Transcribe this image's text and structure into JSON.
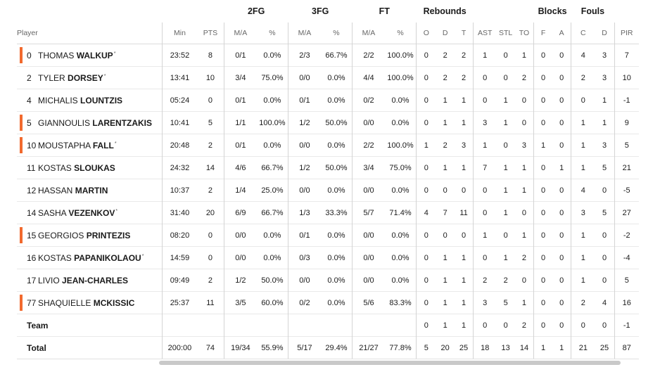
{
  "headers": {
    "groups": {
      "fg2": "2FG",
      "fg3": "3FG",
      "ft": "FT",
      "rebounds": "Rebounds",
      "blocks": "Blocks",
      "fouls": "Fouls"
    },
    "cols": {
      "player": "Player",
      "min": "Min",
      "pts": "PTS",
      "fg2_ma": "M/A",
      "fg2_pct": "%",
      "fg3_ma": "M/A",
      "fg3_pct": "%",
      "ft_ma": "M/A",
      "ft_pct": "%",
      "reb_o": "O",
      "reb_d": "D",
      "reb_t": "T",
      "ast": "AST",
      "stl": "STL",
      "to": "TO",
      "blk_f": "F",
      "blk_a": "A",
      "foul_c": "C",
      "foul_d": "D",
      "pir": "PIR"
    }
  },
  "players": [
    {
      "num": "0",
      "first": "THOMAS",
      "last": "WALKUP",
      "star": "*",
      "starter": true,
      "min": "23:52",
      "pts": "8",
      "fg2_ma": "0/1",
      "fg2_pct": "0.0%",
      "fg3_ma": "2/3",
      "fg3_pct": "66.7%",
      "ft_ma": "2/2",
      "ft_pct": "100.0%",
      "reb_o": "0",
      "reb_d": "2",
      "reb_t": "2",
      "ast": "1",
      "stl": "0",
      "to": "1",
      "blk_f": "0",
      "blk_a": "0",
      "foul_c": "4",
      "foul_d": "3",
      "pir": "7"
    },
    {
      "num": "2",
      "first": "TYLER",
      "last": "DORSEY",
      "star": "*",
      "starter": false,
      "min": "13:41",
      "pts": "10",
      "fg2_ma": "3/4",
      "fg2_pct": "75.0%",
      "fg3_ma": "0/0",
      "fg3_pct": "0.0%",
      "ft_ma": "4/4",
      "ft_pct": "100.0%",
      "reb_o": "0",
      "reb_d": "2",
      "reb_t": "2",
      "ast": "0",
      "stl": "0",
      "to": "2",
      "blk_f": "0",
      "blk_a": "0",
      "foul_c": "2",
      "foul_d": "3",
      "pir": "10"
    },
    {
      "num": "4",
      "first": "MICHALIS",
      "last": "LOUNTZIS",
      "star": "",
      "starter": false,
      "min": "05:24",
      "pts": "0",
      "fg2_ma": "0/1",
      "fg2_pct": "0.0%",
      "fg3_ma": "0/1",
      "fg3_pct": "0.0%",
      "ft_ma": "0/2",
      "ft_pct": "0.0%",
      "reb_o": "0",
      "reb_d": "1",
      "reb_t": "1",
      "ast": "0",
      "stl": "1",
      "to": "0",
      "blk_f": "0",
      "blk_a": "0",
      "foul_c": "0",
      "foul_d": "1",
      "pir": "-1"
    },
    {
      "num": "5",
      "first": "GIANNOULIS",
      "last": "LARENTZAKIS",
      "star": "",
      "starter": true,
      "min": "10:41",
      "pts": "5",
      "fg2_ma": "1/1",
      "fg2_pct": "100.0%",
      "fg3_ma": "1/2",
      "fg3_pct": "50.0%",
      "ft_ma": "0/0",
      "ft_pct": "0.0%",
      "reb_o": "0",
      "reb_d": "1",
      "reb_t": "1",
      "ast": "3",
      "stl": "1",
      "to": "0",
      "blk_f": "0",
      "blk_a": "0",
      "foul_c": "1",
      "foul_d": "1",
      "pir": "9"
    },
    {
      "num": "10",
      "first": "MOUSTAPHA",
      "last": "FALL",
      "star": "*",
      "starter": true,
      "min": "20:48",
      "pts": "2",
      "fg2_ma": "0/1",
      "fg2_pct": "0.0%",
      "fg3_ma": "0/0",
      "fg3_pct": "0.0%",
      "ft_ma": "2/2",
      "ft_pct": "100.0%",
      "reb_o": "1",
      "reb_d": "2",
      "reb_t": "3",
      "ast": "1",
      "stl": "0",
      "to": "3",
      "blk_f": "1",
      "blk_a": "0",
      "foul_c": "1",
      "foul_d": "3",
      "pir": "5"
    },
    {
      "num": "11",
      "first": "KOSTAS",
      "last": "SLOUKAS",
      "star": "",
      "starter": false,
      "min": "24:32",
      "pts": "14",
      "fg2_ma": "4/6",
      "fg2_pct": "66.7%",
      "fg3_ma": "1/2",
      "fg3_pct": "50.0%",
      "ft_ma": "3/4",
      "ft_pct": "75.0%",
      "reb_o": "0",
      "reb_d": "1",
      "reb_t": "1",
      "ast": "7",
      "stl": "1",
      "to": "1",
      "blk_f": "0",
      "blk_a": "1",
      "foul_c": "1",
      "foul_d": "5",
      "pir": "21"
    },
    {
      "num": "12",
      "first": "HASSAN",
      "last": "MARTIN",
      "star": "",
      "starter": false,
      "min": "10:37",
      "pts": "2",
      "fg2_ma": "1/4",
      "fg2_pct": "25.0%",
      "fg3_ma": "0/0",
      "fg3_pct": "0.0%",
      "ft_ma": "0/0",
      "ft_pct": "0.0%",
      "reb_o": "0",
      "reb_d": "0",
      "reb_t": "0",
      "ast": "0",
      "stl": "1",
      "to": "1",
      "blk_f": "0",
      "blk_a": "0",
      "foul_c": "4",
      "foul_d": "0",
      "pir": "-5"
    },
    {
      "num": "14",
      "first": "SASHA",
      "last": "VEZENKOV",
      "star": "*",
      "starter": false,
      "min": "31:40",
      "pts": "20",
      "fg2_ma": "6/9",
      "fg2_pct": "66.7%",
      "fg3_ma": "1/3",
      "fg3_pct": "33.3%",
      "ft_ma": "5/7",
      "ft_pct": "71.4%",
      "reb_o": "4",
      "reb_d": "7",
      "reb_t": "11",
      "ast": "0",
      "stl": "1",
      "to": "0",
      "blk_f": "0",
      "blk_a": "0",
      "foul_c": "3",
      "foul_d": "5",
      "pir": "27"
    },
    {
      "num": "15",
      "first": "GEORGIOS",
      "last": "PRINTEZIS",
      "star": "",
      "starter": true,
      "min": "08:20",
      "pts": "0",
      "fg2_ma": "0/0",
      "fg2_pct": "0.0%",
      "fg3_ma": "0/1",
      "fg3_pct": "0.0%",
      "ft_ma": "0/0",
      "ft_pct": "0.0%",
      "reb_o": "0",
      "reb_d": "0",
      "reb_t": "0",
      "ast": "1",
      "stl": "0",
      "to": "1",
      "blk_f": "0",
      "blk_a": "0",
      "foul_c": "1",
      "foul_d": "0",
      "pir": "-2"
    },
    {
      "num": "16",
      "first": "KOSTAS",
      "last": "PAPANIKOLAOU",
      "star": "*",
      "starter": false,
      "min": "14:59",
      "pts": "0",
      "fg2_ma": "0/0",
      "fg2_pct": "0.0%",
      "fg3_ma": "0/3",
      "fg3_pct": "0.0%",
      "ft_ma": "0/0",
      "ft_pct": "0.0%",
      "reb_o": "0",
      "reb_d": "1",
      "reb_t": "1",
      "ast": "0",
      "stl": "1",
      "to": "2",
      "blk_f": "0",
      "blk_a": "0",
      "foul_c": "1",
      "foul_d": "0",
      "pir": "-4"
    },
    {
      "num": "17",
      "first": "LIVIO",
      "last": "JEAN-CHARLES",
      "star": "",
      "starter": false,
      "min": "09:49",
      "pts": "2",
      "fg2_ma": "1/2",
      "fg2_pct": "50.0%",
      "fg3_ma": "0/0",
      "fg3_pct": "0.0%",
      "ft_ma": "0/0",
      "ft_pct": "0.0%",
      "reb_o": "0",
      "reb_d": "1",
      "reb_t": "1",
      "ast": "2",
      "stl": "2",
      "to": "0",
      "blk_f": "0",
      "blk_a": "0",
      "foul_c": "1",
      "foul_d": "0",
      "pir": "5"
    },
    {
      "num": "77",
      "first": "SHAQUIELLE",
      "last": "MCKISSIC",
      "star": "",
      "starter": true,
      "min": "25:37",
      "pts": "11",
      "fg2_ma": "3/5",
      "fg2_pct": "60.0%",
      "fg3_ma": "0/2",
      "fg3_pct": "0.0%",
      "ft_ma": "5/6",
      "ft_pct": "83.3%",
      "reb_o": "0",
      "reb_d": "1",
      "reb_t": "1",
      "ast": "3",
      "stl": "5",
      "to": "1",
      "blk_f": "0",
      "blk_a": "0",
      "foul_c": "2",
      "foul_d": "4",
      "pir": "16"
    }
  ],
  "team": {
    "label": "Team",
    "min": "",
    "pts": "",
    "fg2_ma": "",
    "fg2_pct": "",
    "fg3_ma": "",
    "fg3_pct": "",
    "ft_ma": "",
    "ft_pct": "",
    "reb_o": "0",
    "reb_d": "1",
    "reb_t": "1",
    "ast": "0",
    "stl": "0",
    "to": "2",
    "blk_f": "0",
    "blk_a": "0",
    "foul_c": "0",
    "foul_d": "0",
    "pir": "-1"
  },
  "total": {
    "label": "Total",
    "min": "200:00",
    "pts": "74",
    "fg2_ma": "19/34",
    "fg2_pct": "55.9%",
    "fg3_ma": "5/17",
    "fg3_pct": "29.4%",
    "ft_ma": "21/27",
    "ft_pct": "77.8%",
    "reb_o": "5",
    "reb_d": "20",
    "reb_t": "25",
    "ast": "18",
    "stl": "13",
    "to": "14",
    "blk_f": "1",
    "blk_a": "1",
    "foul_c": "21",
    "foul_d": "25",
    "pir": "87"
  },
  "colors": {
    "starter_marker": "#f26a2e"
  }
}
